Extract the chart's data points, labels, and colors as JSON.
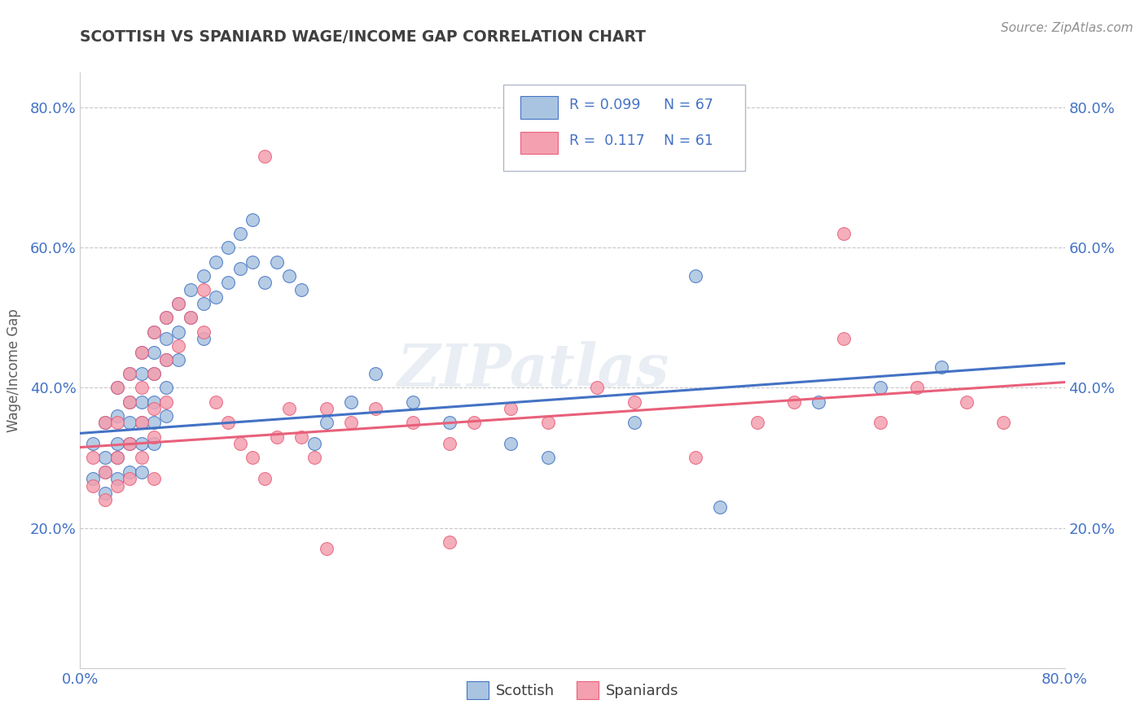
{
  "title": "SCOTTISH VS SPANIARD WAGE/INCOME GAP CORRELATION CHART",
  "source": "Source: ZipAtlas.com",
  "ylabel": "Wage/Income Gap",
  "xlim": [
    0.0,
    0.8
  ],
  "ylim": [
    0.0,
    0.85
  ],
  "xtick_labels": [
    "0.0%",
    "80.0%"
  ],
  "xtick_positions": [
    0.0,
    0.8
  ],
  "ytick_labels": [
    "20.0%",
    "40.0%",
    "60.0%",
    "80.0%"
  ],
  "ytick_positions": [
    0.2,
    0.4,
    0.6,
    0.8
  ],
  "legend_r_scottish": "R = 0.099",
  "legend_n_scottish": "N = 67",
  "legend_r_spaniard": "R =  0.117",
  "legend_n_spaniard": "N = 61",
  "scottish_color": "#a8c4e0",
  "spaniard_color": "#f4a0b0",
  "trend_scottish_color": "#4472c4",
  "trend_spaniard_color": "#e8607a",
  "background_color": "#ffffff",
  "grid_color": "#c8c8c8",
  "title_color": "#404040",
  "axis_label_color": "#606060",
  "watermark": "ZIPatlas",
  "scottish_x": [
    0.01,
    0.01,
    0.02,
    0.02,
    0.02,
    0.02,
    0.03,
    0.03,
    0.03,
    0.03,
    0.03,
    0.04,
    0.04,
    0.04,
    0.04,
    0.04,
    0.05,
    0.05,
    0.05,
    0.05,
    0.05,
    0.05,
    0.06,
    0.06,
    0.06,
    0.06,
    0.06,
    0.06,
    0.07,
    0.07,
    0.07,
    0.07,
    0.07,
    0.08,
    0.08,
    0.08,
    0.09,
    0.09,
    0.1,
    0.1,
    0.1,
    0.11,
    0.11,
    0.12,
    0.12,
    0.13,
    0.13,
    0.14,
    0.14,
    0.15,
    0.16,
    0.17,
    0.18,
    0.19,
    0.2,
    0.22,
    0.24,
    0.27,
    0.3,
    0.35,
    0.38,
    0.45,
    0.5,
    0.52,
    0.6,
    0.65,
    0.7
  ],
  "scottish_y": [
    0.32,
    0.27,
    0.35,
    0.3,
    0.28,
    0.25,
    0.4,
    0.36,
    0.32,
    0.3,
    0.27,
    0.42,
    0.38,
    0.35,
    0.32,
    0.28,
    0.45,
    0.42,
    0.38,
    0.35,
    0.32,
    0.28,
    0.48,
    0.45,
    0.42,
    0.38,
    0.35,
    0.32,
    0.5,
    0.47,
    0.44,
    0.4,
    0.36,
    0.52,
    0.48,
    0.44,
    0.54,
    0.5,
    0.56,
    0.52,
    0.47,
    0.58,
    0.53,
    0.6,
    0.55,
    0.62,
    0.57,
    0.64,
    0.58,
    0.55,
    0.58,
    0.56,
    0.54,
    0.32,
    0.35,
    0.38,
    0.42,
    0.38,
    0.35,
    0.32,
    0.3,
    0.35,
    0.56,
    0.23,
    0.38,
    0.4,
    0.43
  ],
  "spaniard_x": [
    0.01,
    0.01,
    0.02,
    0.02,
    0.02,
    0.03,
    0.03,
    0.03,
    0.03,
    0.04,
    0.04,
    0.04,
    0.04,
    0.05,
    0.05,
    0.05,
    0.05,
    0.06,
    0.06,
    0.06,
    0.06,
    0.06,
    0.07,
    0.07,
    0.07,
    0.08,
    0.08,
    0.09,
    0.1,
    0.1,
    0.11,
    0.12,
    0.13,
    0.14,
    0.15,
    0.16,
    0.17,
    0.18,
    0.19,
    0.2,
    0.22,
    0.24,
    0.27,
    0.3,
    0.32,
    0.35,
    0.38,
    0.42,
    0.45,
    0.5,
    0.55,
    0.58,
    0.62,
    0.65,
    0.68,
    0.72,
    0.75,
    0.3,
    0.15,
    0.62,
    0.2
  ],
  "spaniard_y": [
    0.3,
    0.26,
    0.35,
    0.28,
    0.24,
    0.4,
    0.35,
    0.3,
    0.26,
    0.42,
    0.38,
    0.32,
    0.27,
    0.45,
    0.4,
    0.35,
    0.3,
    0.48,
    0.42,
    0.37,
    0.33,
    0.27,
    0.5,
    0.44,
    0.38,
    0.52,
    0.46,
    0.5,
    0.54,
    0.48,
    0.38,
    0.35,
    0.32,
    0.3,
    0.27,
    0.33,
    0.37,
    0.33,
    0.3,
    0.37,
    0.35,
    0.37,
    0.35,
    0.32,
    0.35,
    0.37,
    0.35,
    0.4,
    0.38,
    0.3,
    0.35,
    0.38,
    0.62,
    0.35,
    0.4,
    0.38,
    0.35,
    0.18,
    0.73,
    0.47,
    0.17
  ],
  "trend_scottish_y_start": 0.335,
  "trend_scottish_y_end": 0.435,
  "trend_spaniard_y_start": 0.315,
  "trend_spaniard_y_end": 0.408
}
